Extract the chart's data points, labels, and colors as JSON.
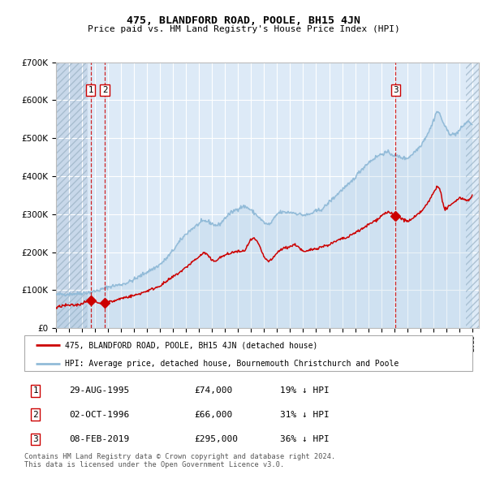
{
  "title": "475, BLANDFORD ROAD, POOLE, BH15 4JN",
  "subtitle": "Price paid vs. HM Land Registry's House Price Index (HPI)",
  "background_color": "#ffffff",
  "plot_bg_color": "#ddeaf7",
  "hatch_bg_color": "#c8d8ea",
  "grid_color": "#ffffff",
  "purchases": [
    {
      "date_num": 1995.66,
      "price": 74000,
      "label": "1"
    },
    {
      "date_num": 1996.75,
      "price": 66000,
      "label": "2"
    },
    {
      "date_num": 2019.1,
      "price": 295000,
      "label": "3"
    }
  ],
  "legend_entries": [
    "475, BLANDFORD ROAD, POOLE, BH15 4JN (detached house)",
    "HPI: Average price, detached house, Bournemouth Christchurch and Poole"
  ],
  "table_rows": [
    {
      "num": "1",
      "date": "29-AUG-1995",
      "price": "£74,000",
      "pct": "19% ↓ HPI"
    },
    {
      "num": "2",
      "date": "02-OCT-1996",
      "price": "£66,000",
      "pct": "31% ↓ HPI"
    },
    {
      "num": "3",
      "date": "08-FEB-2019",
      "price": "£295,000",
      "pct": "36% ↓ HPI"
    }
  ],
  "footer": "Contains HM Land Registry data © Crown copyright and database right 2024.\nThis data is licensed under the Open Government Licence v3.0.",
  "ylim": [
    0,
    700000
  ],
  "yticks": [
    0,
    100000,
    200000,
    300000,
    400000,
    500000,
    600000,
    700000
  ],
  "hpi_color": "#92bbd8",
  "price_color": "#cc0000",
  "dashed_line_color": "#cc0000",
  "marker_color": "#cc0000",
  "xlim_start": 1993.0,
  "xlim_end": 2025.5,
  "hatch_end": 1995.4,
  "right_hatch_start": 2024.5
}
